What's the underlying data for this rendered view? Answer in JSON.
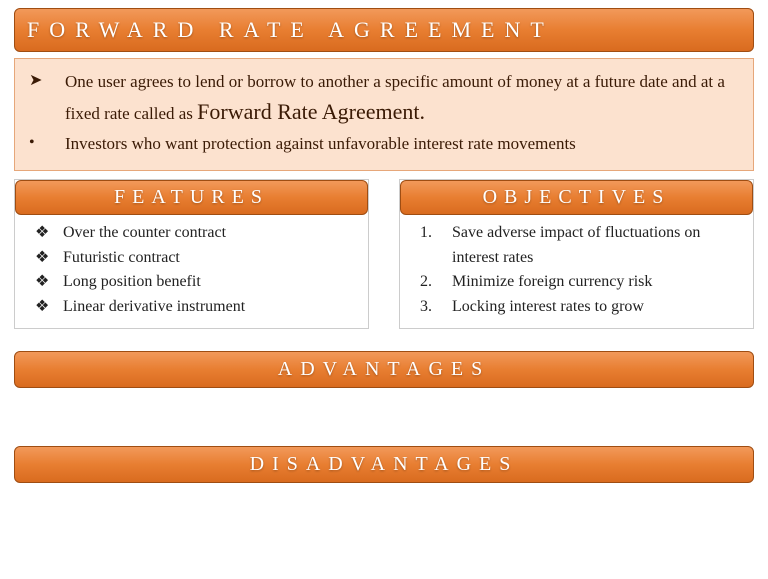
{
  "colors": {
    "banner_gradient_top": "#f2995a",
    "banner_gradient_mid": "#e87e31",
    "banner_gradient_bottom": "#d96b1f",
    "banner_border": "#9f4d12",
    "desc_bg": "#fce2cf",
    "desc_border": "#e6a77a",
    "text_dark": "#3a1a05"
  },
  "title": "FORWARD RATE AGREEMENT",
  "description": {
    "items": [
      {
        "bullet": "➤",
        "text_before": "One user agrees to lend or borrow to another a specific amount of money at a future date and at a fixed rate called as ",
        "emphasis": "Forward Rate Agreement.",
        "text_after": ""
      },
      {
        "bullet": "•",
        "text_before": "Investors who want protection against unfavorable interest rate movements",
        "emphasis": "",
        "text_after": ""
      }
    ]
  },
  "features": {
    "heading": "FEATURES",
    "bullet": "❖",
    "items": [
      "Over the counter contract",
      "Futuristic contract",
      "Long position benefit",
      "Linear derivative instrument"
    ]
  },
  "objectives": {
    "heading": "OBJECTIVES",
    "items": [
      "Save adverse impact of fluctuations on interest rates",
      "Minimize foreign currency risk",
      "Locking interest rates to grow"
    ]
  },
  "advantages_heading": "ADVANTAGES",
  "disadvantages_heading": "DISADVANTAGES"
}
